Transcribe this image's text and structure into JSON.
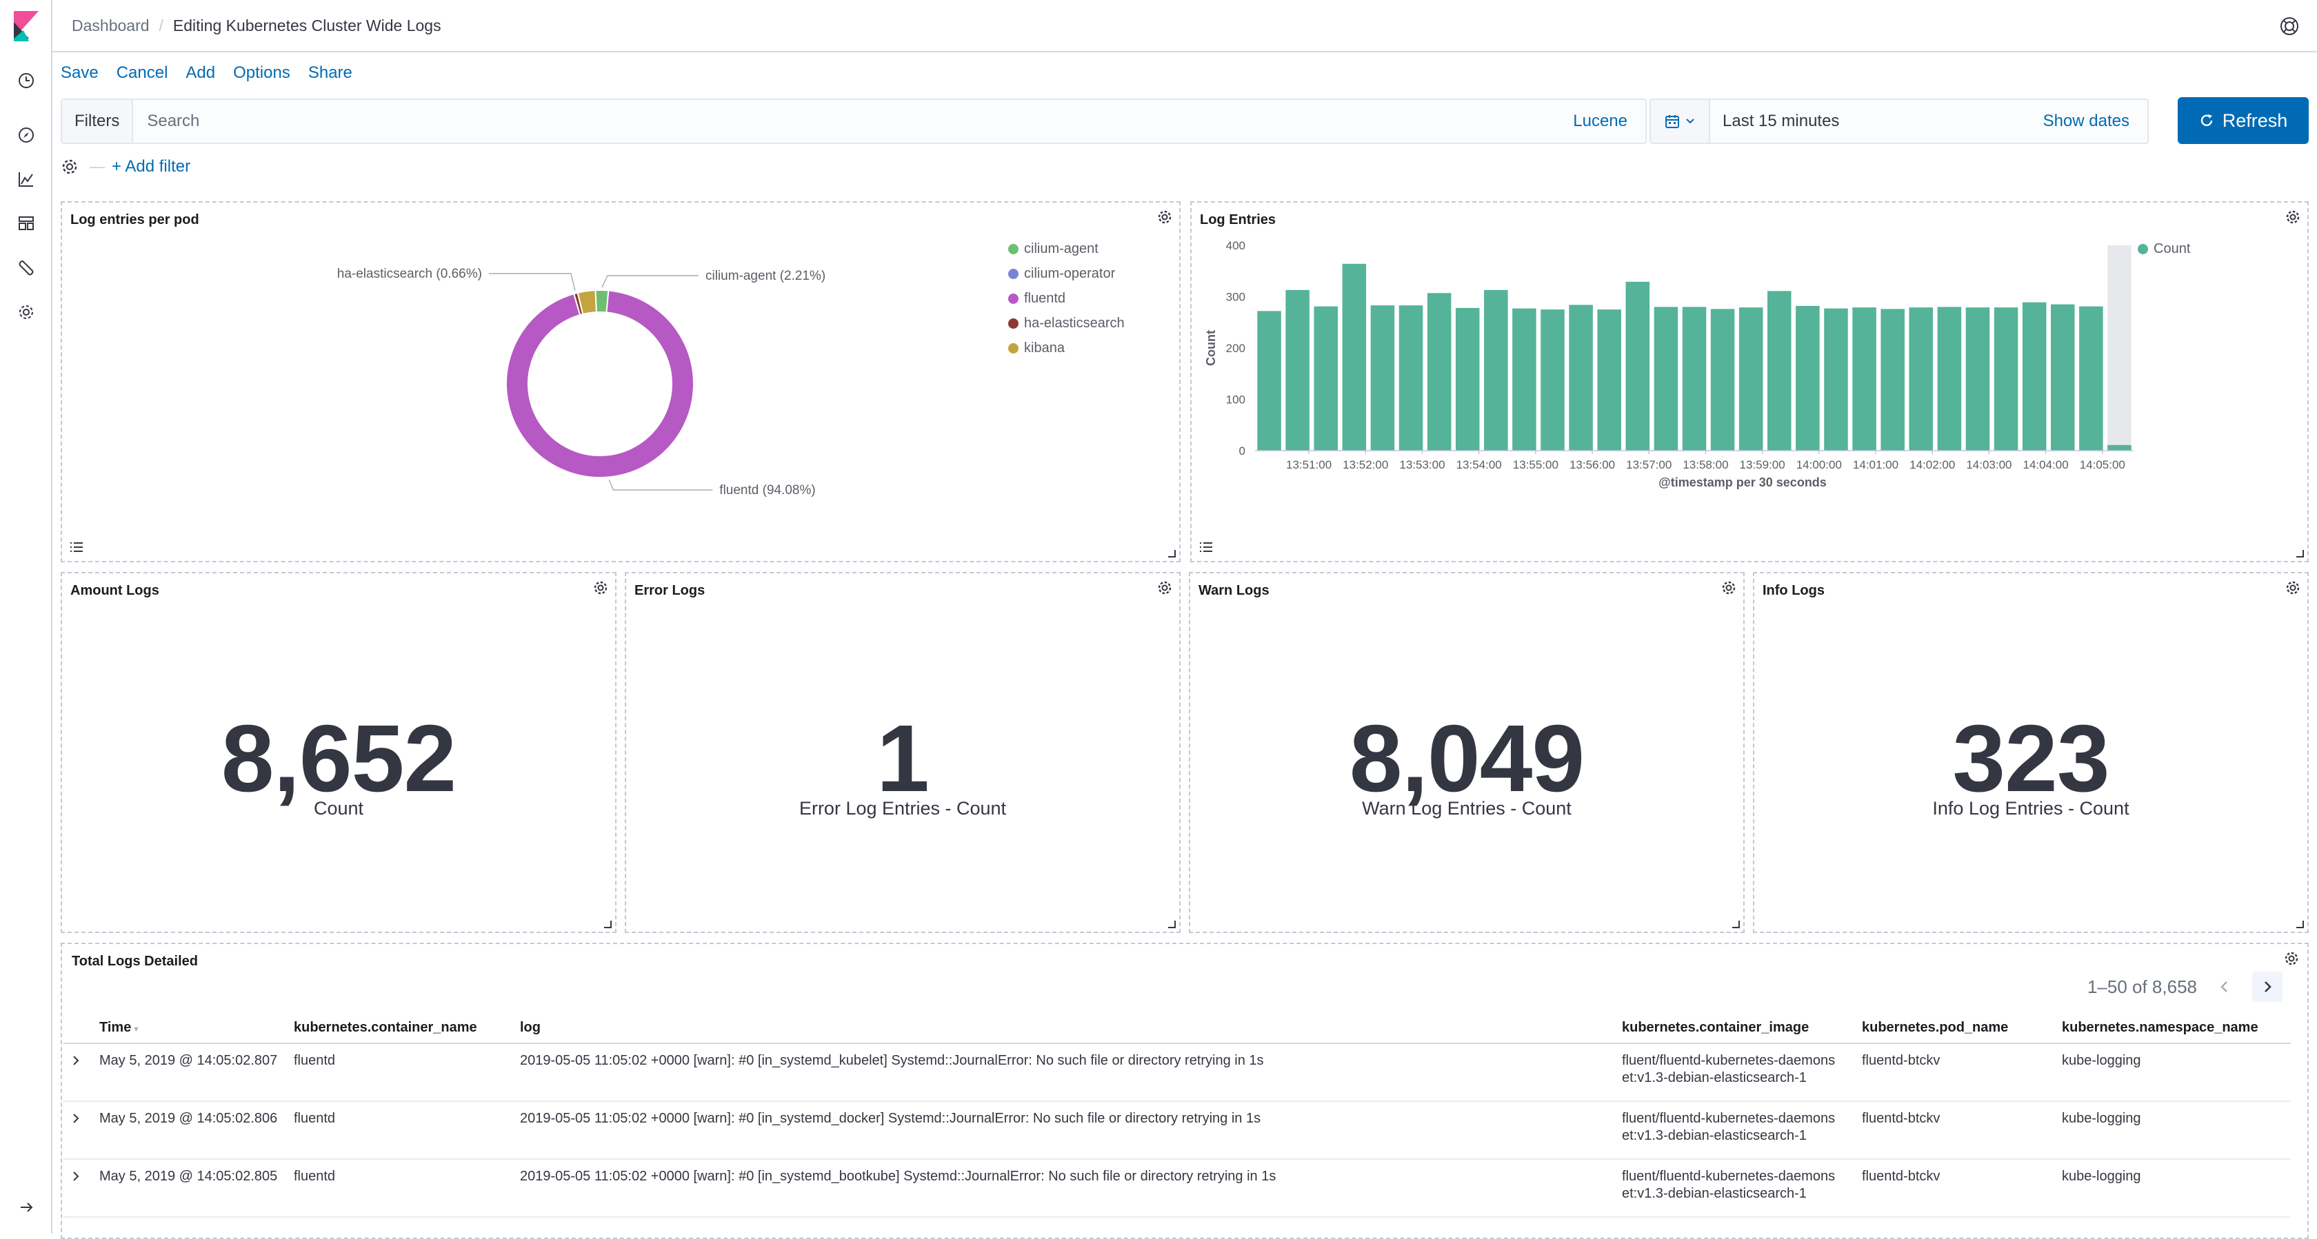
{
  "breadcrumb": {
    "parent": "Dashboard",
    "current": "Editing Kubernetes Cluster Wide Logs"
  },
  "topmenu": {
    "save": "Save",
    "cancel": "Cancel",
    "add": "Add",
    "options": "Options",
    "share": "Share"
  },
  "querybar": {
    "filters_label": "Filters",
    "search_placeholder": "Search",
    "language": "Lucene"
  },
  "datepicker": {
    "range": "Last 15 minutes",
    "show_dates": "Show dates",
    "refresh": "Refresh"
  },
  "filterbar": {
    "add_filter": "+ Add filter"
  },
  "panels": {
    "pie": {
      "title": "Log entries per pod"
    },
    "bar": {
      "title": "Log Entries"
    },
    "amount": {
      "title": "Amount Logs",
      "value": "8,652",
      "label": "Count"
    },
    "error": {
      "title": "Error Logs",
      "value": "1",
      "label": "Error Log Entries - Count"
    },
    "warn": {
      "title": "Warn Logs",
      "value": "8,049",
      "label": "Warn Log Entries - Count"
    },
    "info": {
      "title": "Info Logs",
      "value": "323",
      "label": "Info Log Entries - Count"
    },
    "table": {
      "title": "Total Logs Detailed"
    }
  },
  "chart_data": [
    {
      "type": "pie",
      "donut": true,
      "title": "Log entries per pod",
      "slices": [
        {
          "name": "fluentd",
          "value": 94.08,
          "color": "#b659c4",
          "label": "fluentd (94.08%)"
        },
        {
          "name": "ha-elasticsearch",
          "value": 0.66,
          "color": "#8c3b32",
          "label": "ha-elasticsearch (0.66%)"
        },
        {
          "name": "kibana",
          "value": 3.05,
          "color": "#c4a43f",
          "label": ""
        },
        {
          "name": "cilium-agent",
          "value": 2.21,
          "color": "#6dbe71",
          "label": "cilium-agent (2.21%)"
        }
      ],
      "legend": [
        {
          "name": "cilium-agent",
          "color": "#6dbe71"
        },
        {
          "name": "cilium-operator",
          "color": "#7b84d2"
        },
        {
          "name": "fluentd",
          "color": "#b659c4"
        },
        {
          "name": "ha-elasticsearch",
          "color": "#8c3b32"
        },
        {
          "name": "kibana",
          "color": "#c4a43f"
        }
      ],
      "legend_position": "top-right"
    },
    {
      "type": "bar",
      "title": "Log Entries",
      "xlabel": "@timestamp per 30 seconds",
      "ylabel": "Count",
      "ylim": [
        0,
        400
      ],
      "yticks": [
        0,
        100,
        200,
        300,
        400
      ],
      "xticks": [
        "13:51:00",
        "13:52:00",
        "13:53:00",
        "13:54:00",
        "13:55:00",
        "13:56:00",
        "13:57:00",
        "13:58:00",
        "13:59:00",
        "14:00:00",
        "14:01:00",
        "14:02:00",
        "14:03:00",
        "14:04:00",
        "14:05:00"
      ],
      "series": [
        {
          "name": "Count",
          "color": "#54b399"
        }
      ],
      "values": [
        272,
        313,
        281,
        364,
        283,
        283,
        307,
        278,
        313,
        277,
        275,
        284,
        275,
        329,
        280,
        280,
        276,
        279,
        311,
        282,
        277,
        279,
        276,
        279,
        280,
        279,
        279,
        289,
        285,
        281,
        11
      ],
      "legend_position": "top-right",
      "highlight_last": true
    }
  ],
  "table": {
    "pagination": "1–50 of 8,658",
    "columns": [
      "Time",
      "kubernetes.container_name",
      "log",
      "kubernetes.container_image",
      "kubernetes.pod_name",
      "kubernetes.namespace_name"
    ],
    "rows": [
      {
        "time": "May 5, 2019 @ 14:05:02.807",
        "container": "fluentd",
        "log": "2019-05-05 11:05:02 +0000 [warn]: #0 [in_systemd_kubelet] Systemd::JournalError: No such file or directory retrying in 1s",
        "image_line1": "fluent/fluentd-kubernetes-daemons",
        "image_line2": "et:v1.3-debian-elasticsearch-1",
        "pod": "fluentd-btckv",
        "namespace": "kube-logging"
      },
      {
        "time": "May 5, 2019 @ 14:05:02.806",
        "container": "fluentd",
        "log": "2019-05-05 11:05:02 +0000 [warn]: #0 [in_systemd_docker] Systemd::JournalError: No such file or directory retrying in 1s",
        "image_line1": "fluent/fluentd-kubernetes-daemons",
        "image_line2": "et:v1.3-debian-elasticsearch-1",
        "pod": "fluentd-btckv",
        "namespace": "kube-logging"
      },
      {
        "time": "May 5, 2019 @ 14:05:02.805",
        "container": "fluentd",
        "log": "2019-05-05 11:05:02 +0000 [warn]: #0 [in_systemd_bootkube] Systemd::JournalError: No such file or directory retrying in 1s",
        "image_line1": "fluent/fluentd-kubernetes-daemons",
        "image_line2": "et:v1.3-debian-elasticsearch-1",
        "pod": "fluentd-btckv",
        "namespace": "kube-logging"
      }
    ]
  },
  "nav_icons": [
    "recently-viewed-icon",
    "discover-icon",
    "visualize-icon",
    "dashboard-icon",
    "dev-tools-icon",
    "management-icon"
  ]
}
